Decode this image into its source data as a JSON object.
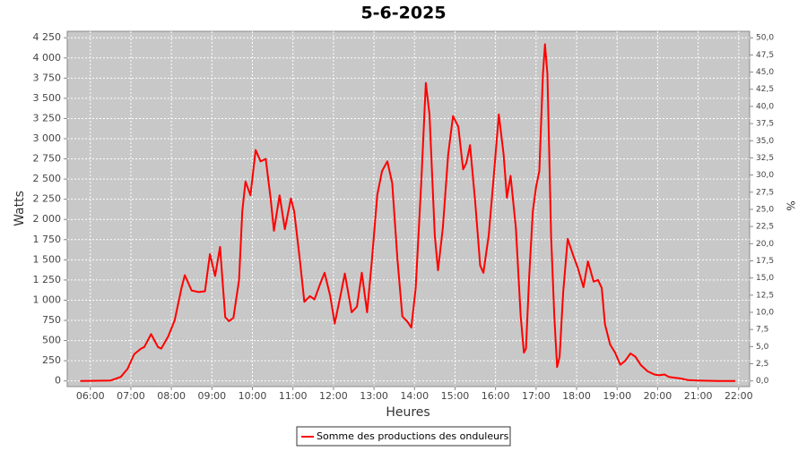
{
  "chart_data": {
    "type": "line",
    "title": "5-6-2025",
    "x_label": "Heures",
    "y_label": "Watts",
    "y2_label": "%",
    "grid": true,
    "legend": "bottom",
    "xlim": [
      5.43,
      22.27
    ],
    "ylim": [
      -70,
      4330
    ],
    "y2lim": [
      -0.82,
      50.94
    ],
    "xticks": [
      {
        "value": 6,
        "label": "06:00"
      },
      {
        "value": 7,
        "label": "07:00"
      },
      {
        "value": 8,
        "label": "08:00"
      },
      {
        "value": 9,
        "label": "09:00"
      },
      {
        "value": 10,
        "label": "10:00"
      },
      {
        "value": 11,
        "label": "11:00"
      },
      {
        "value": 12,
        "label": "12:00"
      },
      {
        "value": 13,
        "label": "13:00"
      },
      {
        "value": 14,
        "label": "14:00"
      },
      {
        "value": 15,
        "label": "15:00"
      },
      {
        "value": 16,
        "label": "16:00"
      },
      {
        "value": 17,
        "label": "17:00"
      },
      {
        "value": 18,
        "label": "18:00"
      },
      {
        "value": 19,
        "label": "19:00"
      },
      {
        "value": 20,
        "label": "20:00"
      },
      {
        "value": 21,
        "label": "21:00"
      },
      {
        "value": 22,
        "label": "22:00"
      }
    ],
    "yticks": [
      0,
      250,
      500,
      750,
      {
        "value": 1000,
        "label": "1 000"
      },
      {
        "value": 1250,
        "label": "1 250"
      },
      {
        "value": 1500,
        "label": "1 500"
      },
      {
        "value": 1750,
        "label": "1 750"
      },
      {
        "value": 2000,
        "label": "2 000"
      },
      {
        "value": 2250,
        "label": "2 250"
      },
      {
        "value": 2500,
        "label": "2 500"
      },
      {
        "value": 2750,
        "label": "2 750"
      },
      {
        "value": 3000,
        "label": "3 000"
      },
      {
        "value": 3250,
        "label": "3 250"
      },
      {
        "value": 3500,
        "label": "3 500"
      },
      {
        "value": 3750,
        "label": "3 750"
      },
      {
        "value": 4000,
        "label": "4 000"
      },
      {
        "value": 4250,
        "label": "4 250"
      }
    ],
    "y2ticks": [
      {
        "value": 0,
        "label": "0,0"
      },
      {
        "value": 2.5,
        "label": "2,5"
      },
      {
        "value": 5,
        "label": "5,0"
      },
      {
        "value": 7.5,
        "label": "7,5"
      },
      {
        "value": 10,
        "label": "10,0"
      },
      {
        "value": 12.5,
        "label": "12,5"
      },
      {
        "value": 15,
        "label": "15,0"
      },
      {
        "value": 17.5,
        "label": "17,5"
      },
      {
        "value": 20,
        "label": "20,0"
      },
      {
        "value": 22.5,
        "label": "22,5"
      },
      {
        "value": 25,
        "label": "25,0"
      },
      {
        "value": 27.5,
        "label": "27,5"
      },
      {
        "value": 30,
        "label": "30,0"
      },
      {
        "value": 32.5,
        "label": "32,5"
      },
      {
        "value": 35,
        "label": "35,0"
      },
      {
        "value": 37.5,
        "label": "37,5"
      },
      {
        "value": 40,
        "label": "40,0"
      },
      {
        "value": 42.5,
        "label": "42,5"
      },
      {
        "value": 45,
        "label": "45,0"
      },
      {
        "value": 47.5,
        "label": "47,5"
      },
      {
        "value": 50,
        "label": "50,0"
      }
    ],
    "x": [
      5.75,
      6.5,
      6.75,
      6.92,
      7.08,
      7.25,
      7.33,
      7.5,
      7.67,
      7.75,
      7.92,
      8.08,
      8.25,
      8.33,
      8.5,
      8.67,
      8.83,
      8.95,
      9.08,
      9.2,
      9.33,
      9.42,
      9.53,
      9.67,
      9.75,
      9.83,
      9.95,
      10.08,
      10.2,
      10.33,
      10.45,
      10.53,
      10.67,
      10.8,
      10.95,
      11.03,
      11.17,
      11.28,
      11.42,
      11.53,
      11.67,
      11.78,
      11.92,
      12.03,
      12.17,
      12.28,
      12.45,
      12.58,
      12.7,
      12.83,
      12.95,
      13.08,
      13.2,
      13.33,
      13.45,
      13.58,
      13.7,
      13.83,
      13.92,
      14.03,
      14.17,
      14.28,
      14.37,
      14.5,
      14.58,
      14.7,
      14.83,
      14.95,
      15.08,
      15.2,
      15.28,
      15.37,
      15.5,
      15.62,
      15.7,
      15.83,
      15.95,
      16.08,
      16.2,
      16.28,
      16.37,
      16.5,
      16.62,
      16.7,
      16.75,
      16.83,
      16.92,
      17,
      17.08,
      17.17,
      17.22,
      17.28,
      17.37,
      17.45,
      17.52,
      17.58,
      17.67,
      17.78,
      17.92,
      18.03,
      18.17,
      18.28,
      18.42,
      18.53,
      18.62,
      18.7,
      18.83,
      18.95,
      19.08,
      19.2,
      19.33,
      19.45,
      19.58,
      19.75,
      19.92,
      20.03,
      20.17,
      20.28,
      20.42,
      20.58,
      20.75,
      21,
      21.5,
      21.92
    ],
    "series": [
      {
        "name": "Somme des productions des onduleurs",
        "color": "#ff0000",
        "values": [
          0,
          5,
          50,
          150,
          330,
          400,
          420,
          580,
          420,
          400,
          550,
          750,
          1150,
          1310,
          1120,
          1100,
          1110,
          1570,
          1300,
          1660,
          790,
          740,
          780,
          1250,
          2100,
          2470,
          2300,
          2860,
          2720,
          2750,
          2250,
          1860,
          2300,
          1880,
          2260,
          2100,
          1500,
          980,
          1050,
          1010,
          1200,
          1340,
          1050,
          710,
          1050,
          1330,
          850,
          920,
          1340,
          850,
          1500,
          2300,
          2600,
          2720,
          2450,
          1500,
          800,
          730,
          660,
          1150,
          2500,
          3690,
          3300,
          1800,
          1370,
          1900,
          2800,
          3280,
          3150,
          2620,
          2700,
          2920,
          2200,
          1430,
          1340,
          1800,
          2500,
          3300,
          2800,
          2270,
          2540,
          1900,
          800,
          350,
          400,
          1300,
          2100,
          2400,
          2600,
          3800,
          4170,
          3800,
          1800,
          800,
          170,
          300,
          1100,
          1760,
          1550,
          1400,
          1160,
          1480,
          1230,
          1250,
          1150,
          700,
          450,
          350,
          200,
          250,
          340,
          300,
          200,
          120,
          80,
          70,
          80,
          50,
          40,
          30,
          10,
          5,
          0,
          0
        ]
      }
    ]
  }
}
